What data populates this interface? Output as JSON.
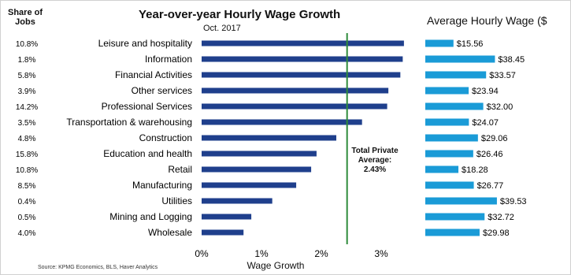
{
  "chart_data": [
    {
      "type": "bar",
      "orientation": "horizontal",
      "title": "Year-over-year Hourly Wage Growth",
      "subtitle": "Oct. 2017",
      "xlabel": "Wage Growth",
      "column_header": "Share of Jobs",
      "categories": [
        "Leisure and hospitality",
        "Information",
        "Financial Activities",
        "Other services",
        "Professional Services",
        "Transportation & warehousing",
        "Construction",
        "Education and health",
        "Retail",
        "Manufacturing",
        "Utilities",
        "Mining and Logging",
        "Wholesale"
      ],
      "share_of_jobs": [
        "10.8%",
        "1.8%",
        "5.8%",
        "3.9%",
        "14.2%",
        "3.5%",
        "4.8%",
        "15.8%",
        "10.8%",
        "8.5%",
        "0.4%",
        "0.5%",
        "4.0%"
      ],
      "values": [
        3.38,
        3.36,
        3.32,
        3.12,
        3.1,
        2.68,
        2.25,
        1.92,
        1.83,
        1.58,
        1.18,
        0.83,
        0.7
      ],
      "unit": "%",
      "xlim": [
        0,
        3.5
      ],
      "xticks": [
        "0%",
        "1%",
        "2%",
        "3%"
      ],
      "reference_line": {
        "value": 2.43,
        "label": "Total Private Average: 2.43%"
      },
      "grid": false,
      "colors": {
        "bar": "#1f3f8c",
        "reference_line": "#2e8b3a"
      }
    },
    {
      "type": "bar",
      "orientation": "horizontal",
      "title": "Average Hourly Wage ($",
      "categories": [
        "Leisure and hospitality",
        "Information",
        "Financial Activities",
        "Other services",
        "Professional Services",
        "Transportation & warehousing",
        "Construction",
        "Education and health",
        "Retail",
        "Manufacturing",
        "Utilities",
        "Mining and Logging",
        "Wholesale"
      ],
      "values": [
        15.56,
        38.45,
        33.57,
        23.94,
        32.0,
        24.07,
        29.06,
        26.46,
        18.28,
        26.77,
        39.53,
        32.72,
        29.98
      ],
      "labels": [
        "$15.56",
        "$38.45",
        "$33.57",
        "$23.94",
        "$32.00",
        "$24.07",
        "$29.06",
        "$26.46",
        "$18.28",
        "$26.77",
        "$39.53",
        "$32.72",
        "$29.98"
      ],
      "grid": false,
      "colors": {
        "bar": "#1a9bd7"
      }
    }
  ],
  "source": "Source: KPMG Economics, BLS, Haver Analytics"
}
